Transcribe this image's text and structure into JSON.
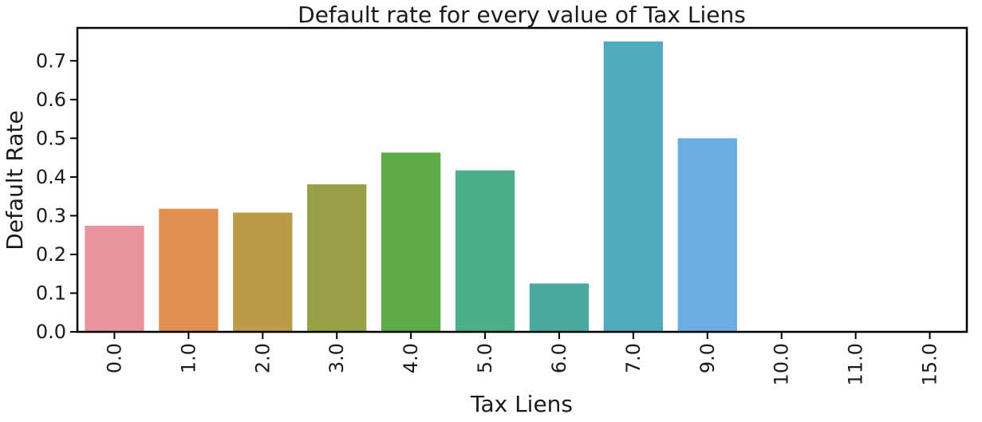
{
  "chart_data": {
    "type": "bar",
    "title": "Default rate for every value of Tax Liens",
    "xlabel": "Tax Liens",
    "ylabel": "Default Rate",
    "categories": [
      "0.0",
      "1.0",
      "2.0",
      "3.0",
      "4.0",
      "5.0",
      "6.0",
      "7.0",
      "9.0",
      "10.0",
      "11.0",
      "15.0"
    ],
    "values": [
      0.274,
      0.318,
      0.308,
      0.381,
      0.463,
      0.417,
      0.125,
      0.75,
      0.5,
      0.0,
      0.0,
      0.0
    ],
    "colors": [
      "#e8949f",
      "#e09051",
      "#b99b48",
      "#98a146",
      "#5eab48",
      "#4baf8a",
      "#49a9a1",
      "#4eaabc",
      "#6aaee1",
      "#a0b7ea",
      "#c3a7ea",
      "#e59ee0"
    ],
    "ylim": [
      0,
      0.785
    ],
    "yticks": [
      "0.0",
      "0.1",
      "0.2",
      "0.3",
      "0.4",
      "0.5",
      "0.6",
      "0.7"
    ],
    "ytick_values": [
      0,
      0.1,
      0.2,
      0.3,
      0.4,
      0.5,
      0.6,
      0.7
    ],
    "grid": false,
    "legend": "none"
  }
}
